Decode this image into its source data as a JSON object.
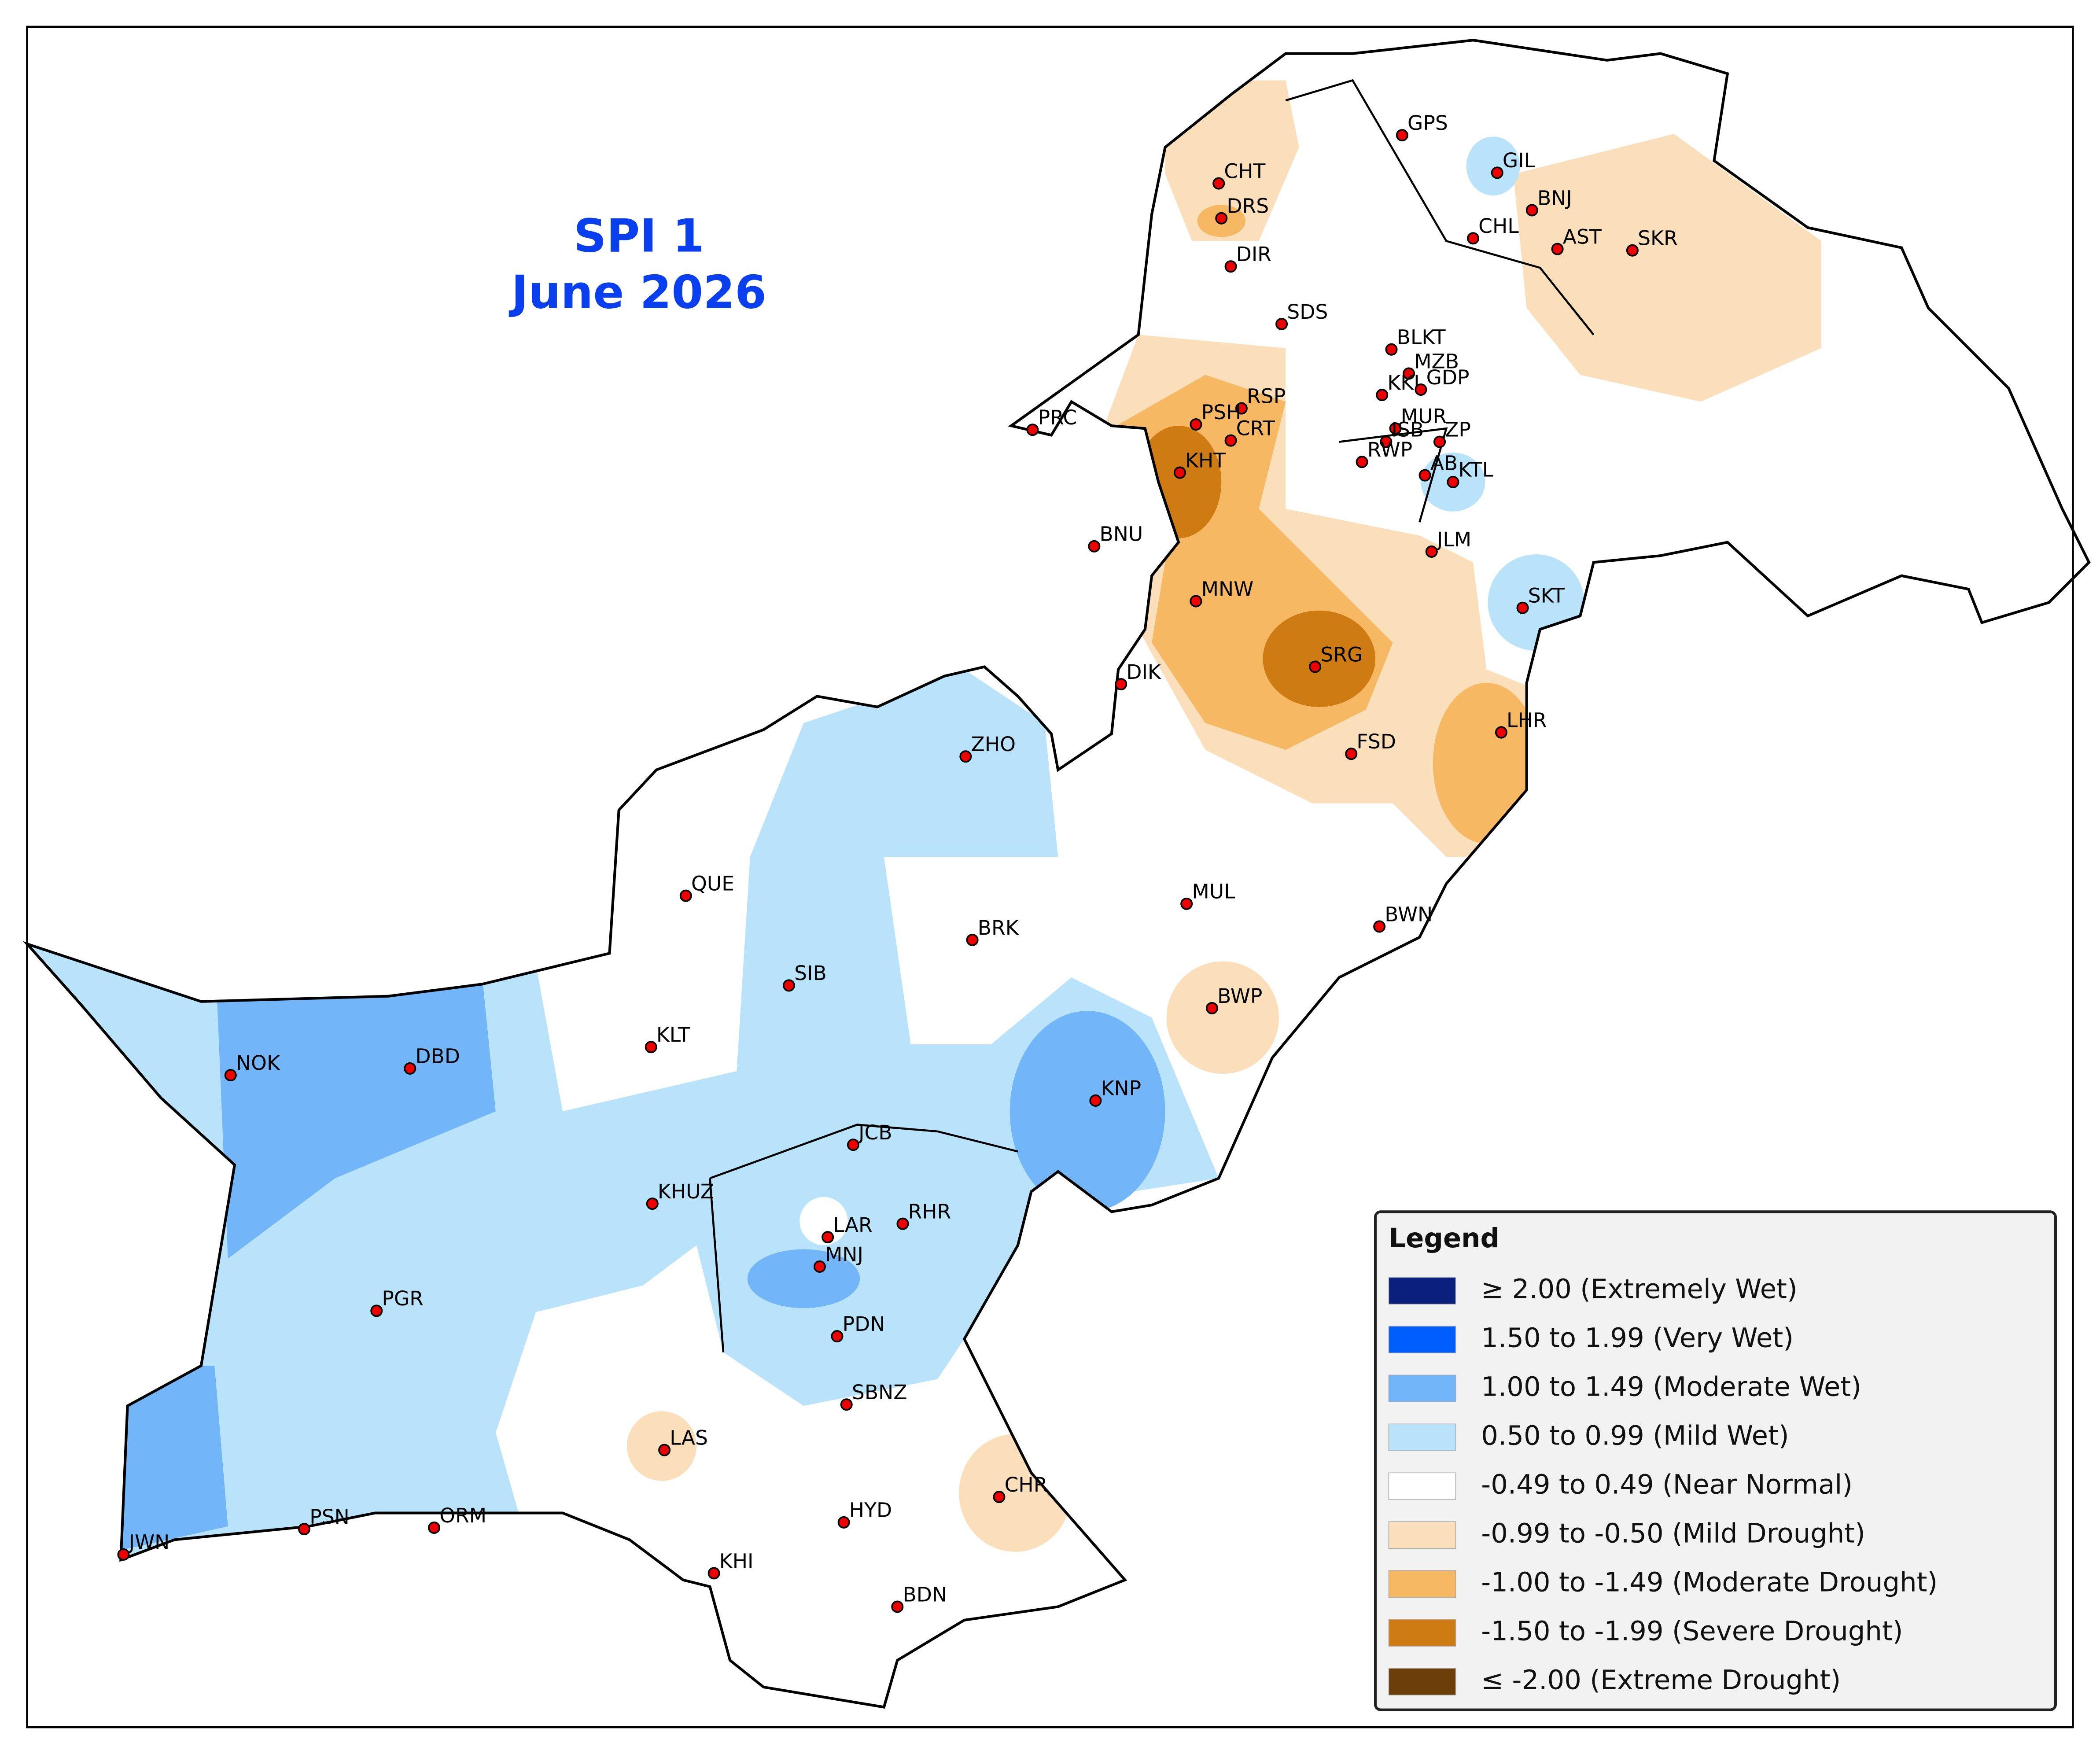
{
  "title": {
    "line1": "SPI 1",
    "line2": "June 2026"
  },
  "legend": {
    "title": "Legend",
    "items": [
      {
        "label": "≥ 2.00 (Extremely Wet)",
        "color": "#0b1f7c"
      },
      {
        "label": "1.50 to 1.99 (Very Wet)",
        "color": "#005eff"
      },
      {
        "label": "1.00 to 1.49 (Moderate Wet)",
        "color": "#73b5f9"
      },
      {
        "label": "0.50 to 0.99 (Mild Wet)",
        "color": "#b9e3fb"
      },
      {
        "label": "-0.49 to 0.49 (Near Normal)",
        "color": "#ffffff"
      },
      {
        "label": "-0.99 to -0.50 (Mild Drought)",
        "color": "#fbdfbb"
      },
      {
        "label": "-1.00 to -1.49 (Moderate Drought)",
        "color": "#f6b863"
      },
      {
        "label": "-1.50 to -1.99 (Severe Drought)",
        "color": "#cf7b14"
      },
      {
        "label": "≤ -2.00 (Extreme Drought)",
        "color": "#6b3e0a"
      }
    ]
  },
  "stations": [
    "GPS",
    "GIL",
    "BNJ",
    "CHL",
    "AST",
    "SKR",
    "CHT",
    "DRS",
    "DIR",
    "SDS",
    "BLKT",
    "MZB",
    "KKL",
    "GDP",
    "MUR",
    "RSP",
    "PSH",
    "CRT",
    "ISB",
    "ZP",
    "RWP",
    "KHT",
    "AB",
    "KTL",
    "PRC",
    "BNU",
    "JLM",
    "MNW",
    "SKT",
    "SRG",
    "DIK",
    "LHR",
    "FSD",
    "ZHO",
    "QUE",
    "MUL",
    "BWN",
    "BRK",
    "SIB",
    "BWP",
    "KLT",
    "NOK",
    "DBD",
    "KNP",
    "JCB",
    "KHUZ",
    "RHR",
    "LAR",
    "MNJ",
    "PGR",
    "PDN",
    "SBNZ",
    "LAS",
    "CHR",
    "HYD",
    "PSN",
    "ORM",
    "JWN",
    "KHI",
    "BDN"
  ]
}
